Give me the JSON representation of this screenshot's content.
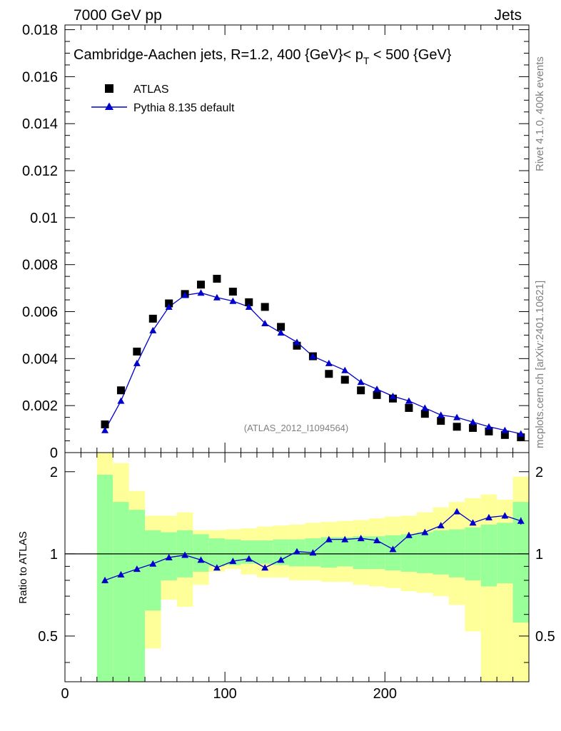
{
  "header": {
    "left": "7000 GeV pp",
    "right": "Jets"
  },
  "side": {
    "rivet": "Rivet 4.1.0,  400k events",
    "mcplots": "mcplots.cern.ch [arXiv:2401.10621]"
  },
  "colors": {
    "mc": "#0000cc",
    "band_inner": "#99ff99",
    "band_outer": "#ffff99",
    "data": "#000000"
  },
  "chart_data": [
    {
      "type": "scatter",
      "title": {
        "prefix": "Cambridge-Aachen jets, R=1.2, 400 {GeV}< p",
        "sub": "T",
        "suffix": " < 500 {GeV}"
      },
      "watermark": "(ATLAS_2012_I1094564)",
      "xlim": [
        0,
        290
      ],
      "ylim": [
        0,
        0.0182
      ],
      "yticks": [
        0,
        0.002,
        0.004,
        0.006,
        0.008,
        0.01,
        0.012,
        0.014,
        0.016,
        0.018
      ],
      "ytick_labels": [
        "0",
        "0.002",
        "0.004",
        "0.006",
        "0.008",
        "0.01",
        "0.012",
        "0.014",
        "0.016",
        "0.018"
      ],
      "x": [
        25,
        35,
        45,
        55,
        65,
        75,
        85,
        95,
        105,
        115,
        125,
        135,
        145,
        155,
        165,
        175,
        185,
        195,
        205,
        215,
        225,
        235,
        245,
        255,
        265,
        275,
        285
      ],
      "series": [
        {
          "name": "ATLAS",
          "marker": "square",
          "values": [
            0.0012,
            0.00265,
            0.0043,
            0.0057,
            0.00635,
            0.00675,
            0.00715,
            0.0074,
            0.00685,
            0.0064,
            0.0062,
            0.00535,
            0.00455,
            0.0041,
            0.00335,
            0.0031,
            0.00265,
            0.00245,
            0.0023,
            0.0019,
            0.00165,
            0.00135,
            0.0011,
            0.00105,
            0.0009,
            0.00075,
            0.00065
          ]
        },
        {
          "name": "Pythia 8.135 default",
          "marker": "triangle",
          "values": [
            0.00095,
            0.0022,
            0.0038,
            0.0052,
            0.0062,
            0.0067,
            0.0068,
            0.0066,
            0.00645,
            0.0062,
            0.0055,
            0.0051,
            0.0047,
            0.0041,
            0.0038,
            0.0035,
            0.003,
            0.0027,
            0.0024,
            0.0022,
            0.0019,
            0.0016,
            0.0015,
            0.0013,
            0.0011,
            0.00095,
            0.0008
          ]
        }
      ]
    },
    {
      "type": "line",
      "ylabel": "Ratio to ATLAS",
      "xlabel": "",
      "xlim": [
        0,
        290
      ],
      "ylim": [
        0.34,
        2.35
      ],
      "yscale": "log",
      "xticks": [
        0,
        100,
        200
      ],
      "xtick_labels": [
        "0",
        "100",
        "200"
      ],
      "yticks": [
        0.5,
        1,
        2
      ],
      "ytick_labels": [
        "0.5",
        "1",
        "2"
      ],
      "band_edges": [
        20,
        30,
        40,
        50,
        60,
        70,
        80,
        90,
        100,
        110,
        120,
        130,
        140,
        150,
        160,
        170,
        180,
        190,
        200,
        210,
        220,
        230,
        240,
        250,
        260,
        270,
        280,
        290
      ],
      "band_inner_low": [
        0.1,
        0.1,
        0.1,
        0.62,
        0.8,
        0.82,
        0.86,
        0.9,
        0.91,
        0.92,
        0.92,
        0.91,
        0.9,
        0.9,
        0.89,
        0.9,
        0.88,
        0.88,
        0.87,
        0.86,
        0.85,
        0.84,
        0.82,
        0.8,
        0.76,
        0.78,
        0.56
      ],
      "band_inner_high": [
        1.95,
        1.55,
        1.45,
        1.22,
        1.2,
        1.22,
        1.18,
        1.14,
        1.13,
        1.12,
        1.12,
        1.13,
        1.13,
        1.14,
        1.15,
        1.15,
        1.16,
        1.16,
        1.17,
        1.18,
        1.2,
        1.22,
        1.23,
        1.25,
        1.28,
        1.3,
        1.55
      ],
      "band_outer_low": [
        0.1,
        0.1,
        0.1,
        0.45,
        0.68,
        0.64,
        0.77,
        0.86,
        0.88,
        0.84,
        0.82,
        0.82,
        0.8,
        0.8,
        0.79,
        0.79,
        0.77,
        0.76,
        0.75,
        0.73,
        0.72,
        0.7,
        0.65,
        0.52,
        0.1,
        0.1,
        0.1
      ],
      "band_outer_high": [
        2.6,
        2.15,
        1.7,
        1.38,
        1.38,
        1.42,
        1.22,
        1.22,
        1.23,
        1.24,
        1.26,
        1.27,
        1.28,
        1.3,
        1.31,
        1.32,
        1.33,
        1.35,
        1.37,
        1.38,
        1.42,
        1.48,
        1.55,
        1.6,
        1.65,
        1.58,
        1.92
      ],
      "x": [
        25,
        35,
        45,
        55,
        65,
        75,
        85,
        95,
        105,
        115,
        125,
        135,
        145,
        155,
        165,
        175,
        185,
        195,
        205,
        215,
        225,
        235,
        245,
        255,
        265,
        275,
        285
      ],
      "series": [
        {
          "name": "Pythia 8.135 default",
          "values": [
            0.8,
            0.84,
            0.88,
            0.92,
            0.97,
            0.99,
            0.95,
            0.89,
            0.94,
            0.96,
            0.89,
            0.95,
            1.02,
            1.01,
            1.13,
            1.13,
            1.14,
            1.12,
            1.04,
            1.17,
            1.2,
            1.27,
            1.43,
            1.3,
            1.36,
            1.38,
            1.32
          ],
          "errors": [
            0.02,
            0.015,
            0.012,
            0.012,
            0.01,
            0.01,
            0.01,
            0.01,
            0.01,
            0.01,
            0.01,
            0.01,
            0.01,
            0.01,
            0.012,
            0.012,
            0.012,
            0.012,
            0.015,
            0.015,
            0.015,
            0.02,
            0.02,
            0.025,
            0.03,
            0.035,
            0.04
          ]
        }
      ],
      "reference_line": 1
    }
  ]
}
